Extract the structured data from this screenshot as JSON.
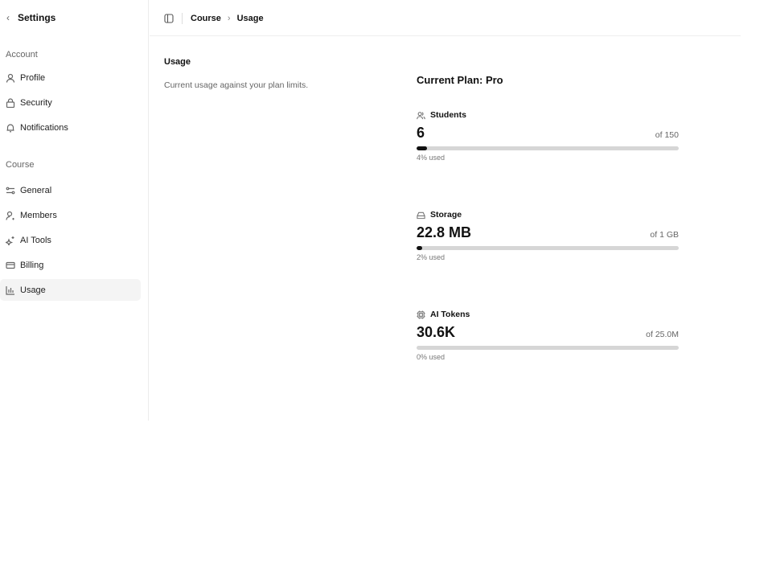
{
  "sidebar": {
    "back_label": "Settings",
    "sections": [
      {
        "label": "Account",
        "items": [
          {
            "label": "Profile",
            "icon": "user-icon"
          },
          {
            "label": "Security",
            "icon": "lock-icon"
          },
          {
            "label": "Notifications",
            "icon": "bell-icon"
          }
        ]
      },
      {
        "label": "Course",
        "items": [
          {
            "label": "General",
            "icon": "sliders-icon"
          },
          {
            "label": "Members",
            "icon": "user-plus-icon"
          },
          {
            "label": "AI Tools",
            "icon": "sparkles-icon"
          },
          {
            "label": "Billing",
            "icon": "credit-card-icon"
          },
          {
            "label": "Usage",
            "icon": "bar-chart-icon",
            "active": true
          }
        ]
      }
    ]
  },
  "header": {
    "breadcrumb": [
      "Course",
      "Usage"
    ]
  },
  "main": {
    "title": "Usage",
    "description": "Current usage against your plan limits.",
    "plan_label": "Current Plan: Pro",
    "metrics": [
      {
        "label": "Students",
        "icon": "users-icon",
        "value": "6",
        "limit": "of 150",
        "percent": 4,
        "percent_label": "4% used"
      },
      {
        "label": "Storage",
        "icon": "hard-drive-icon",
        "value": "22.8 MB",
        "limit": "of 1 GB",
        "percent": 2,
        "percent_label": "2% used"
      },
      {
        "label": "AI Tokens",
        "icon": "cpu-icon",
        "value": "30.6K",
        "limit": "of 25.0M",
        "percent": 0,
        "percent_label": "0% used"
      }
    ]
  }
}
